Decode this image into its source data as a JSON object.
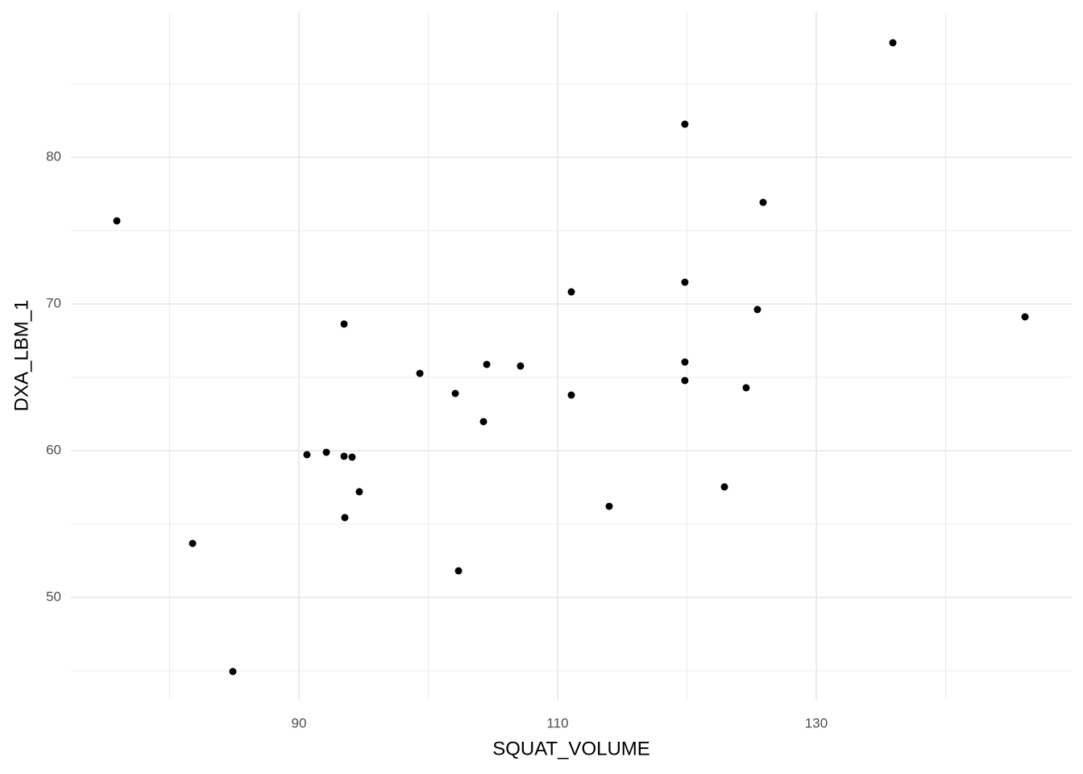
{
  "chart_data": {
    "type": "scatter",
    "x_label": "SQUAT_VOLUME",
    "y_label": "DXA_LBM_1",
    "color": "#000000",
    "x": [
      75.92,
      81.78,
      84.89,
      90.62,
      92.12,
      93.49,
      93.49,
      94.11,
      93.55,
      94.67,
      99.35,
      102.09,
      102.34,
      104.27,
      104.52,
      107.13,
      111.06,
      111.06,
      113.99,
      119.84,
      119.84,
      119.84,
      119.84,
      122.9,
      124.58,
      125.45,
      125.89,
      135.92,
      146.14
    ],
    "values": [
      75.66,
      53.68,
      44.95,
      59.73,
      59.89,
      68.63,
      59.62,
      59.56,
      55.44,
      57.2,
      65.27,
      63.9,
      51.81,
      61.98,
      65.88,
      65.77,
      70.82,
      63.79,
      56.21,
      82.25,
      71.48,
      66.04,
      64.78,
      57.53,
      64.29,
      69.62,
      76.92,
      87.8,
      69.12
    ],
    "xlim": [
      72.37,
      149.75
    ],
    "ylim": [
      43.02,
      89.89
    ],
    "xticks": [
      90,
      110,
      130
    ],
    "yticks": [
      50,
      60,
      70,
      80
    ],
    "xminorticks": [
      80,
      100,
      120,
      140
    ],
    "yminorticks": [
      45,
      55,
      65,
      75,
      85
    ],
    "grid": true
  }
}
